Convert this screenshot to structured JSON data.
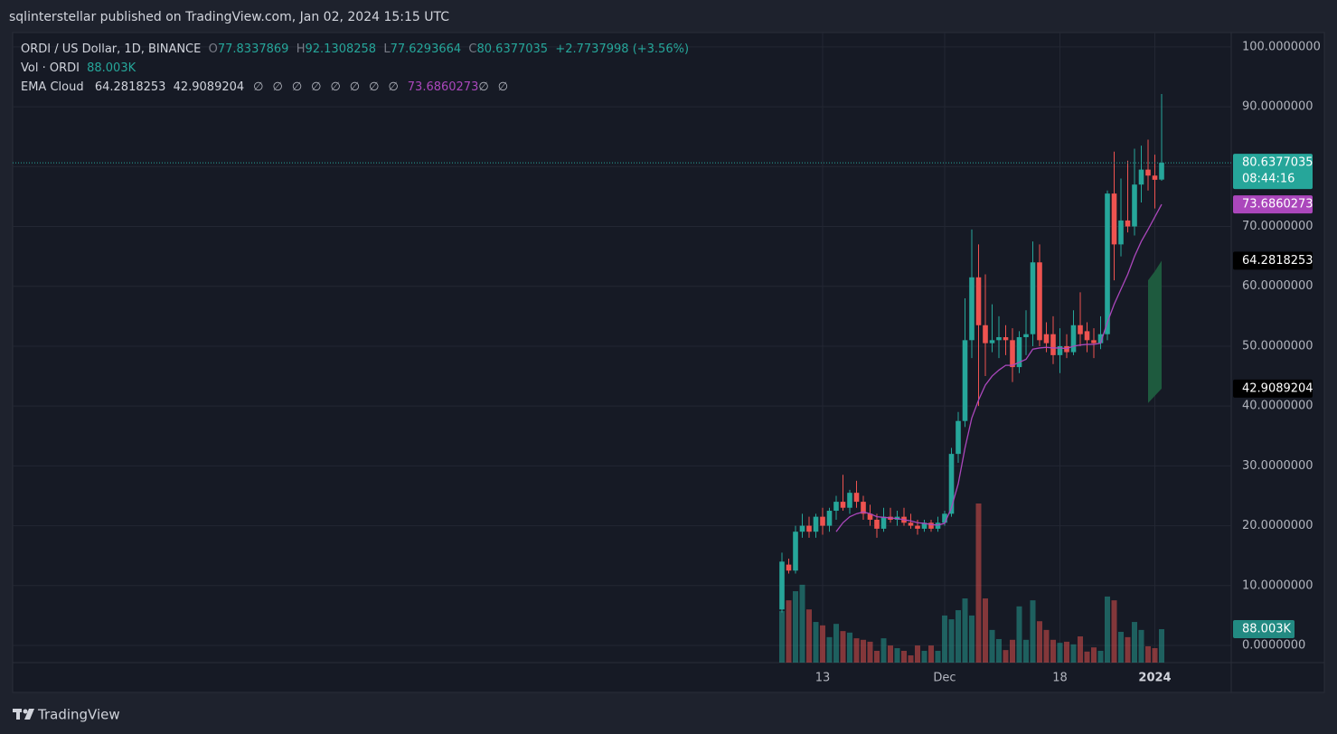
{
  "header": {
    "publisher_line": "sqlinterstellar published on TradingView.com, Jan 02, 2024 15:15 UTC",
    "brand": "TradingView"
  },
  "chart_data": {
    "type": "candlestick",
    "title": "ORDI / US Dollar, 1D, BINANCE",
    "ohlc_labels": [
      "O",
      "H",
      "L",
      "C"
    ],
    "change": "+2.7737998",
    "change_pct": "(+3.56%)",
    "countdown": "08:44:16",
    "up_color": "#26a69a",
    "down_color": "#ef5350",
    "categories": [
      null,
      null,
      null,
      null,
      null,
      null,
      "13",
      null,
      null,
      null,
      null,
      null,
      null,
      null,
      null,
      null,
      null,
      null,
      null,
      null,
      null,
      null,
      null,
      null,
      "Dec",
      null,
      null,
      null,
      null,
      null,
      null,
      null,
      null,
      null,
      null,
      null,
      null,
      null,
      null,
      null,
      null,
      "18",
      null,
      null,
      null,
      null,
      null,
      null,
      null,
      null,
      null,
      null,
      null,
      null,
      null,
      "2024",
      null
    ],
    "open": [
      6,
      13.5,
      12.5,
      19,
      20,
      19,
      21.5,
      20,
      22.5,
      24,
      23,
      25.5,
      24,
      22,
      21,
      19.5,
      21.5,
      21,
      21.5,
      20.5,
      20,
      19.5,
      20.5,
      19.5,
      20.5,
      22,
      32,
      37.5,
      51,
      61.5,
      53.5,
      50.5,
      51,
      51.5,
      51,
      46.5,
      51.5,
      52,
      64,
      52,
      52,
      48.5,
      50,
      49,
      53.5,
      52.5,
      51,
      50.5,
      52,
      75.5,
      67,
      71,
      70,
      77,
      79.5,
      78.5,
      77.8337869
    ],
    "high": [
      15.5,
      14.5,
      20,
      22,
      21.5,
      22,
      23,
      23,
      25,
      28.5,
      26,
      27.5,
      25,
      23.5,
      22,
      23,
      23,
      22.5,
      23,
      22,
      21,
      21,
      21,
      21.5,
      22.5,
      33,
      39,
      58,
      69.5,
      67,
      62,
      57,
      55,
      53.5,
      53,
      52.5,
      56,
      67.5,
      67,
      54,
      55,
      53,
      52,
      56,
      59,
      54,
      53,
      55,
      76,
      82.5,
      78,
      81,
      83,
      83.5,
      84.5,
      82,
      92.1308258
    ],
    "low": [
      5.5,
      12,
      12,
      18,
      18,
      18,
      18.5,
      19,
      21,
      22.5,
      22,
      23,
      21,
      20,
      18,
      19,
      20.5,
      20,
      20,
      19.5,
      18.5,
      19,
      19,
      19,
      20,
      21.5,
      30.5,
      36.5,
      48,
      40,
      45,
      49,
      48,
      48.5,
      44,
      45.5,
      48.5,
      50,
      50,
      49,
      47,
      45.5,
      48,
      48.5,
      50,
      49,
      48,
      49.5,
      51,
      61,
      65,
      69,
      68.5,
      74,
      76,
      73,
      77.6293664
    ],
    "close": [
      14,
      12.5,
      19,
      20,
      19,
      21.5,
      20,
      22.5,
      24,
      23,
      25.5,
      24,
      22,
      21,
      19.5,
      21.5,
      21,
      21.5,
      20.5,
      20,
      19.5,
      20.5,
      19.5,
      20.5,
      22,
      32,
      37.5,
      51,
      61.5,
      53.5,
      50.5,
      51,
      51.5,
      51,
      46.5,
      51.5,
      52,
      64,
      51,
      50.5,
      48.5,
      50,
      49,
      53.5,
      52,
      51,
      50.5,
      52,
      75.5,
      67,
      71,
      70,
      77,
      79.5,
      78.5,
      77.8,
      80.6377035
    ],
    "volume": {
      "name": "Vol · ORDI",
      "values": [
        136,
        164,
        188,
        205,
        140,
        107,
        98,
        67,
        102,
        83,
        79,
        64,
        60,
        55,
        31,
        64,
        45,
        38,
        31,
        19,
        45,
        31,
        45,
        31,
        124,
        114,
        138,
        169,
        124,
        419,
        169,
        86,
        62,
        33,
        60,
        148,
        60,
        164,
        109,
        86,
        60,
        52,
        55,
        48,
        69,
        29,
        40,
        31,
        174,
        164,
        81,
        67,
        107,
        86,
        43,
        38,
        88.003
      ],
      "value_labels": [
        null,
        null,
        null,
        null,
        null,
        null,
        null,
        null,
        null,
        null,
        null,
        null,
        null,
        null,
        null,
        null,
        null,
        null,
        null,
        null,
        null,
        null,
        null,
        null,
        null,
        null,
        null,
        null,
        null,
        null,
        null,
        null,
        null,
        null,
        null,
        null,
        null,
        null,
        null,
        null,
        null,
        null,
        null,
        null,
        null,
        null,
        null,
        null,
        null,
        null,
        null,
        null,
        null,
        null,
        null,
        null,
        "88.003K"
      ]
    },
    "ema_name": "EMA Cloud",
    "ema_color": "#ab47bc",
    "ema": [
      null,
      null,
      null,
      null,
      null,
      null,
      null,
      null,
      19,
      20.5,
      21.5,
      22,
      22.3,
      22,
      21.5,
      21.4,
      21.3,
      21.2,
      21,
      20.8,
      20.5,
      20.4,
      20.2,
      20.1,
      20.4,
      23,
      27,
      33,
      38,
      41,
      43.5,
      45,
      46,
      46.8,
      46.8,
      47.3,
      47.8,
      49.5,
      49.7,
      49.8,
      49.7,
      49.7,
      49.6,
      50,
      50.2,
      50.3,
      50.3,
      50.5,
      54,
      57,
      59.5,
      62,
      65,
      67.5,
      69.5,
      71.6,
      73.6860273
    ],
    "cloud_color": "#1e5a3e",
    "cloud_upper": [
      null,
      null,
      null,
      null,
      null,
      null,
      null,
      null,
      null,
      null,
      null,
      null,
      null,
      null,
      null,
      null,
      null,
      null,
      null,
      null,
      null,
      null,
      null,
      null,
      null,
      null,
      null,
      null,
      null,
      null,
      null,
      null,
      null,
      null,
      null,
      null,
      null,
      null,
      null,
      null,
      null,
      null,
      null,
      null,
      null,
      null,
      null,
      null,
      null,
      null,
      null,
      null,
      null,
      null,
      61,
      62.5,
      64.2818253
    ],
    "cloud_lower": [
      null,
      null,
      null,
      null,
      null,
      null,
      null,
      null,
      null,
      null,
      null,
      null,
      null,
      null,
      null,
      null,
      null,
      null,
      null,
      null,
      null,
      null,
      null,
      null,
      null,
      null,
      null,
      null,
      null,
      null,
      null,
      null,
      null,
      null,
      null,
      null,
      null,
      null,
      null,
      null,
      null,
      null,
      null,
      null,
      null,
      null,
      null,
      null,
      null,
      null,
      null,
      null,
      null,
      null,
      40.5,
      41.7,
      42.9089204
    ],
    "ema_cloud_na": [
      "∅",
      "∅",
      "∅",
      "∅",
      "∅",
      "∅",
      "∅",
      "∅",
      "∅",
      "∅"
    ],
    "ylim": [
      -2.87,
      102.4
    ],
    "yticks": [
      {
        "value": 0,
        "label": "0.0000000"
      },
      {
        "value": 10,
        "label": "10.0000000"
      },
      {
        "value": 20,
        "label": "20.0000000"
      },
      {
        "value": 30,
        "label": "30.0000000"
      },
      {
        "value": 40,
        "label": "40.0000000"
      },
      {
        "value": 50,
        "label": "50.0000000"
      },
      {
        "value": 60,
        "label": "60.0000000"
      },
      {
        "value": 70,
        "label": "70.0000000"
      },
      {
        "value": 80,
        "label": "80.0000000"
      },
      {
        "value": 90,
        "label": "90.0000000"
      },
      {
        "value": 100,
        "label": "100.0000000"
      }
    ],
    "grid": true
  }
}
